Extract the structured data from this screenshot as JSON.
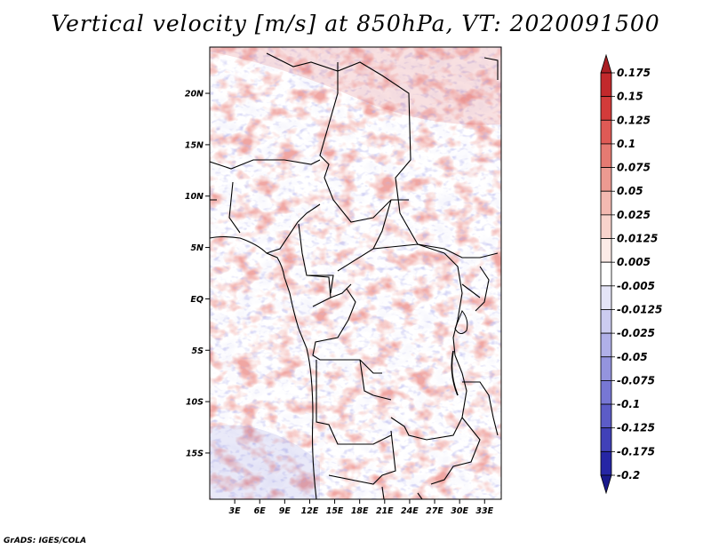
{
  "title": "Vertical velocity [m/s] at 850hPa, VT: 2020091500",
  "credit": "GrADS: IGES/COLA",
  "map": {
    "lat_range": [
      -19.5,
      24.5
    ],
    "lon_range": [
      0,
      35
    ],
    "lat_ticks": [
      {
        "value": 20,
        "label": "20N"
      },
      {
        "value": 15,
        "label": "15N"
      },
      {
        "value": 10,
        "label": "10N"
      },
      {
        "value": 5,
        "label": "5N"
      },
      {
        "value": 0,
        "label": "EQ"
      },
      {
        "value": -5,
        "label": "5S"
      },
      {
        "value": -10,
        "label": "10S"
      },
      {
        "value": -15,
        "label": "15S"
      }
    ],
    "lon_ticks": [
      {
        "value": 3,
        "label": "3E"
      },
      {
        "value": 6,
        "label": "6E"
      },
      {
        "value": 9,
        "label": "9E"
      },
      {
        "value": 12,
        "label": "12E"
      },
      {
        "value": 15,
        "label": "15E"
      },
      {
        "value": 18,
        "label": "18E"
      },
      {
        "value": 21,
        "label": "21E"
      },
      {
        "value": 24,
        "label": "24E"
      },
      {
        "value": 27,
        "label": "27E"
      },
      {
        "value": 30,
        "label": "30E"
      },
      {
        "value": 33,
        "label": "33E"
      }
    ]
  },
  "colorbar": {
    "labels": [
      "0.175",
      "0.15",
      "0.125",
      "0.1",
      "0.075",
      "0.05",
      "0.025",
      "0.0125",
      "0.005",
      "-0.005",
      "-0.0125",
      "-0.025",
      "-0.05",
      "-0.075",
      "-0.1",
      "-0.125",
      "-0.175",
      "-0.2"
    ],
    "colors": [
      "#aa1e23",
      "#c2292c",
      "#d33b3a",
      "#df5a55",
      "#e57a72",
      "#ec9a91",
      "#f3b9b1",
      "#f8d3cc",
      "#fcebe7",
      "#ffffff",
      "#e4e4f7",
      "#ccccf0",
      "#b0b0e8",
      "#9494de",
      "#7777d4",
      "#5c5cc7",
      "#4141b8",
      "#2626a5",
      "#1a1a8c"
    ]
  }
}
